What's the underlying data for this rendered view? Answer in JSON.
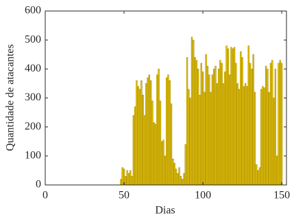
{
  "chart_data": {
    "type": "bar",
    "xlabel": "Dias",
    "ylabel": "Quantidade de atacantes",
    "color": "#e6c200",
    "edgecolor": "#9c8200",
    "x": [
      1,
      2,
      3,
      4,
      5,
      6,
      7,
      8,
      9,
      10,
      11,
      12,
      13,
      14,
      15,
      16,
      17,
      18,
      19,
      20,
      21,
      22,
      23,
      24,
      25,
      26,
      27,
      28,
      29,
      30,
      31,
      32,
      33,
      34,
      35,
      36,
      37,
      38,
      39,
      40,
      41,
      42,
      43,
      44,
      45,
      46,
      47,
      48,
      49,
      50,
      51,
      52,
      53,
      54,
      55,
      56,
      57,
      58,
      59,
      60,
      61,
      62,
      63,
      64,
      65,
      66,
      67,
      68,
      69,
      70,
      71,
      72,
      73,
      74,
      75,
      76,
      77,
      78,
      79,
      80,
      81,
      82,
      83,
      84,
      85,
      86,
      87,
      88,
      89,
      90,
      91,
      92,
      93,
      94,
      95,
      96,
      97,
      98,
      99,
      100,
      101,
      102,
      103,
      104,
      105,
      106,
      107,
      108,
      109,
      110,
      111,
      112,
      113,
      114,
      115,
      116,
      117,
      118,
      119,
      120,
      121,
      122,
      123,
      124,
      125,
      126,
      127,
      128,
      129,
      130,
      131,
      132,
      133,
      134,
      135,
      136,
      137,
      138,
      139,
      140,
      141,
      142,
      143,
      144,
      145,
      146,
      147,
      148,
      149,
      150
    ],
    "values": [
      0,
      0,
      0,
      0,
      0,
      0,
      0,
      0,
      0,
      0,
      0,
      0,
      0,
      0,
      0,
      0,
      0,
      0,
      0,
      0,
      0,
      0,
      0,
      0,
      0,
      0,
      0,
      0,
      0,
      0,
      0,
      0,
      0,
      0,
      0,
      0,
      0,
      0,
      0,
      0,
      0,
      0,
      0,
      0,
      0,
      0,
      0,
      20,
      60,
      55,
      30,
      50,
      40,
      50,
      30,
      240,
      270,
      360,
      340,
      330,
      360,
      310,
      240,
      350,
      370,
      380,
      360,
      290,
      215,
      210,
      380,
      400,
      290,
      150,
      155,
      100,
      370,
      380,
      360,
      280,
      90,
      75,
      55,
      40,
      60,
      30,
      20,
      40,
      140,
      440,
      330,
      300,
      510,
      500,
      440,
      430,
      400,
      310,
      420,
      390,
      320,
      450,
      410,
      380,
      320,
      380,
      400,
      410,
      350,
      400,
      430,
      420,
      350,
      390,
      480,
      470,
      380,
      475,
      470,
      475,
      420,
      350,
      330,
      460,
      440,
      340,
      350,
      340,
      480,
      420,
      400,
      450,
      320,
      70,
      50,
      60,
      330,
      340,
      335,
      410,
      400,
      320,
      420,
      430,
      300,
      400,
      100,
      420,
      430,
      420
    ],
    "xlim": [
      0,
      153
    ],
    "ylim": [
      0,
      600
    ],
    "xticks": [
      0,
      50,
      100,
      150
    ],
    "yticks": [
      0,
      100,
      200,
      300,
      400,
      500,
      600
    ]
  }
}
